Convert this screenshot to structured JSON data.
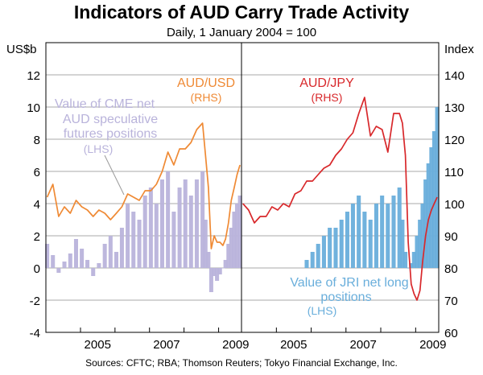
{
  "header": {
    "title": "Indicators of AUD Carry Trade Activity",
    "subtitle": "Daily, 1 January 2004 = 100",
    "left_unit": "US$b",
    "right_unit": "Index"
  },
  "footer": {
    "sources": "Sources: CFTC; RBA; Thomson Reuters; Tokyo Financial Exchange, Inc."
  },
  "colors": {
    "aud_usd": "#ef8a35",
    "aud_jpy": "#d8282b",
    "cme": "#b9b3db",
    "jri": "#69aedb",
    "grid": "#8e8e8e"
  },
  "chart_data": [
    {
      "type": "line",
      "panel": "left",
      "y_left": {
        "ylim": [
          -4,
          14
        ],
        "ticks": [
          -4,
          -2,
          0,
          2,
          4,
          6,
          8,
          10,
          12
        ]
      },
      "y_right": {
        "ylim": [
          60,
          150
        ],
        "ticks": [
          60,
          70,
          80,
          90,
          100,
          110,
          120,
          130,
          140
        ]
      },
      "x_ticks": [
        "2005",
        "2007",
        "2009"
      ],
      "xlim": [
        "2004-01-01",
        "2009-08-31"
      ],
      "grid": true,
      "series": [
        {
          "name": "AUD/USD",
          "sublabel": "(RHS)",
          "kind": "line",
          "axis": "right",
          "x": [
            "2004-01",
            "2004-03",
            "2004-05",
            "2004-07",
            "2004-09",
            "2004-11",
            "2005-01",
            "2005-03",
            "2005-05",
            "2005-07",
            "2005-09",
            "2005-11",
            "2006-01",
            "2006-03",
            "2006-05",
            "2006-07",
            "2006-09",
            "2006-11",
            "2007-01",
            "2007-03",
            "2007-05",
            "2007-07",
            "2007-09",
            "2007-11",
            "2008-01",
            "2008-03",
            "2008-05",
            "2008-07",
            "2008-08",
            "2008-09",
            "2008-10",
            "2008-11",
            "2008-12",
            "2009-01",
            "2009-02",
            "2009-03",
            "2009-04",
            "2009-05",
            "2009-06",
            "2009-07",
            "2009-08"
          ],
          "values": [
            102,
            106,
            96,
            99,
            97,
            101,
            99,
            98,
            96,
            98,
            97,
            95,
            97,
            99,
            103,
            102,
            101,
            104,
            104,
            106,
            110,
            116,
            112,
            117,
            117,
            119,
            123,
            125,
            115,
            105,
            86,
            90,
            88,
            88,
            87,
            89,
            94,
            101,
            105,
            109,
            112
          ]
        },
        {
          "name": "Value of CME net AUD speculative futures positions",
          "sublabel": "(LHS)",
          "kind": "bar",
          "axis": "left",
          "x": [
            "2004-01",
            "2004-03",
            "2004-05",
            "2004-07",
            "2004-09",
            "2004-11",
            "2005-01",
            "2005-03",
            "2005-05",
            "2005-07",
            "2005-09",
            "2005-11",
            "2006-01",
            "2006-03",
            "2006-05",
            "2006-07",
            "2006-09",
            "2006-11",
            "2007-01",
            "2007-03",
            "2007-05",
            "2007-07",
            "2007-09",
            "2007-11",
            "2008-01",
            "2008-03",
            "2008-05",
            "2008-07",
            "2008-08",
            "2008-09",
            "2008-10",
            "2008-11",
            "2008-12",
            "2009-01",
            "2009-02",
            "2009-03",
            "2009-04",
            "2009-05",
            "2009-06",
            "2009-07",
            "2009-08"
          ],
          "values": [
            1.5,
            0.8,
            -0.3,
            0.4,
            0.9,
            1.8,
            1.2,
            0.5,
            -0.5,
            0.3,
            1.5,
            2.0,
            1.0,
            2.5,
            4.0,
            3.5,
            3.0,
            4.5,
            5.0,
            4.0,
            5.5,
            6.0,
            3.5,
            5.0,
            5.5,
            4.5,
            5.5,
            6.0,
            3.0,
            1.0,
            -1.5,
            -0.5,
            -0.8,
            -0.4,
            0.0,
            0.5,
            1.5,
            2.5,
            3.5,
            4.0,
            4.5
          ]
        }
      ],
      "annotations": []
    },
    {
      "type": "line",
      "panel": "right",
      "y_left": {
        "ylim": [
          -4,
          14
        ],
        "ticks": [
          -4,
          -2,
          0,
          2,
          4,
          6,
          8,
          10,
          12
        ]
      },
      "y_right": {
        "ylim": [
          60,
          150
        ],
        "ticks": [
          60,
          70,
          80,
          90,
          100,
          110,
          120,
          130,
          140
        ]
      },
      "x_ticks": [
        "2005",
        "2007",
        "2009"
      ],
      "xlim": [
        "2004-01-01",
        "2009-08-31"
      ],
      "grid": true,
      "series": [
        {
          "name": "AUD/JPY",
          "sublabel": "(RHS)",
          "kind": "line",
          "axis": "right",
          "x": [
            "2004-01",
            "2004-03",
            "2004-05",
            "2004-07",
            "2004-09",
            "2004-11",
            "2005-01",
            "2005-03",
            "2005-05",
            "2005-07",
            "2005-09",
            "2005-11",
            "2006-01",
            "2006-03",
            "2006-05",
            "2006-07",
            "2006-09",
            "2006-11",
            "2007-01",
            "2007-03",
            "2007-05",
            "2007-07",
            "2007-09",
            "2007-11",
            "2008-01",
            "2008-03",
            "2008-05",
            "2008-07",
            "2008-08",
            "2008-09",
            "2008-10",
            "2008-11",
            "2008-12",
            "2009-01",
            "2009-02",
            "2009-03",
            "2009-04",
            "2009-05",
            "2009-06",
            "2009-07",
            "2009-08"
          ],
          "values": [
            100,
            98,
            94,
            96,
            96,
            99,
            98,
            100,
            99,
            103,
            104,
            107,
            107,
            109,
            111,
            112,
            115,
            117,
            120,
            122,
            128,
            133,
            121,
            124,
            123,
            116,
            128,
            128,
            125,
            115,
            88,
            75,
            72,
            70,
            73,
            82,
            90,
            95,
            98,
            100,
            102
          ]
        },
        {
          "name": "Value of JRI net long positions",
          "sublabel": "(LHS)",
          "kind": "bar",
          "axis": "left",
          "x": [
            "2005-11",
            "2006-01",
            "2006-03",
            "2006-05",
            "2006-07",
            "2006-09",
            "2006-11",
            "2007-01",
            "2007-03",
            "2007-05",
            "2007-07",
            "2007-09",
            "2007-11",
            "2008-01",
            "2008-03",
            "2008-05",
            "2008-07",
            "2008-08",
            "2008-09",
            "2008-10",
            "2008-11",
            "2008-12",
            "2009-01",
            "2009-02",
            "2009-03",
            "2009-04",
            "2009-05",
            "2009-06",
            "2009-07",
            "2009-08"
          ],
          "values": [
            0.5,
            1.0,
            1.5,
            2.0,
            2.5,
            2.5,
            3.0,
            3.5,
            4.0,
            4.5,
            3.5,
            3.0,
            4.0,
            4.5,
            4.0,
            4.5,
            5.0,
            3.0,
            1.0,
            0.0,
            0.3,
            1.0,
            2.0,
            3.0,
            4.0,
            5.5,
            6.5,
            7.5,
            8.5,
            10.0
          ]
        }
      ],
      "annotations": []
    }
  ],
  "labels": {
    "left_line": {
      "line1": "AUD/USD",
      "line2": "(RHS)"
    },
    "left_bar": {
      "line1": "Value of CME net",
      "line2": "AUD speculative",
      "line3": "futures positions",
      "line4": "(LHS)"
    },
    "right_line": {
      "line1": "AUD/JPY",
      "line2": "(RHS)"
    },
    "right_bar": {
      "line1": "Value of JRI net long",
      "line2": "positions",
      "line3": "(LHS)"
    }
  }
}
